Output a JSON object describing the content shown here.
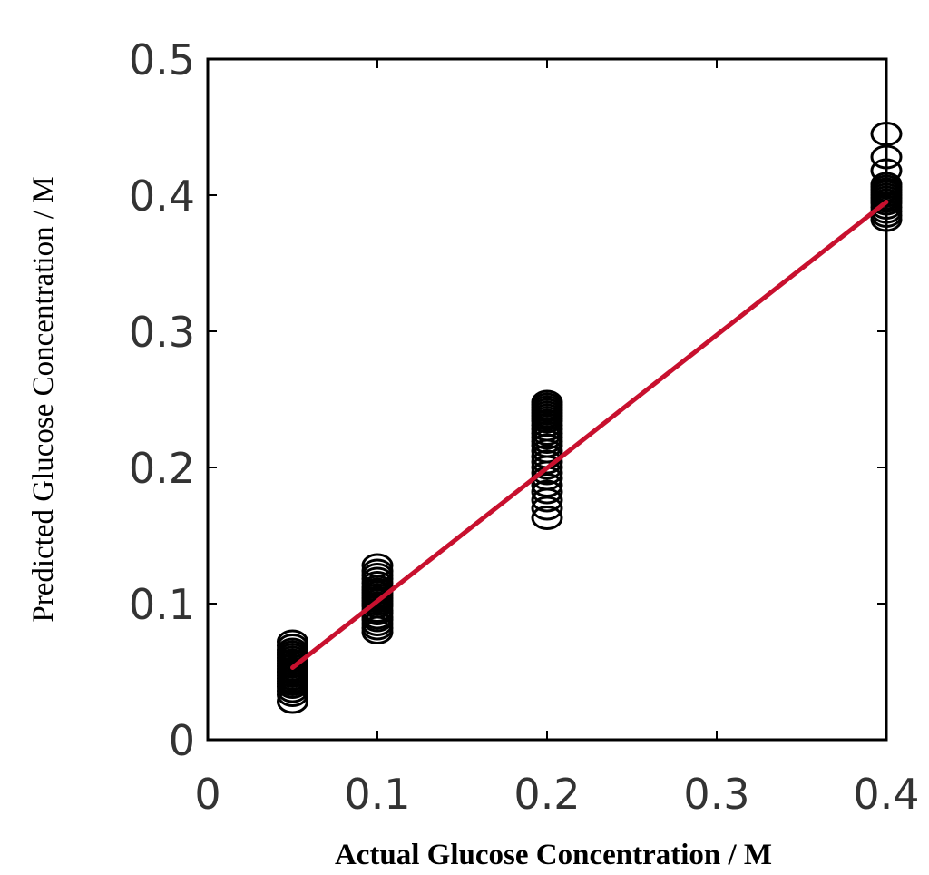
{
  "chart_data": {
    "type": "scatter",
    "title": "",
    "xlabel": "Actual Glucose Concentration / M",
    "ylabel": "Predicted Glucose Concentration / M",
    "xlim": [
      0,
      0.4
    ],
    "ylim": [
      0,
      0.5
    ],
    "xticks": [
      "0",
      "0.1",
      "0.2",
      "0.3",
      "0.4"
    ],
    "yticks": [
      "0",
      "0.1",
      "0.2",
      "0.3",
      "0.4",
      "0.5"
    ],
    "grid": false,
    "legend": "none",
    "marker": "open-circle",
    "marker_color": "#000000",
    "fit_line_color": "#c8102e",
    "series": [
      {
        "x": [
          0.05,
          0.05,
          0.05,
          0.05,
          0.05,
          0.05,
          0.05,
          0.05,
          0.05,
          0.05,
          0.05,
          0.05,
          0.05,
          0.05,
          0.05,
          0.05,
          0.05,
          0.05,
          0.05,
          0.05,
          0.1,
          0.1,
          0.1,
          0.1,
          0.1,
          0.1,
          0.1,
          0.1,
          0.1,
          0.1,
          0.1,
          0.1,
          0.1,
          0.1,
          0.1,
          0.1,
          0.1,
          0.1,
          0.1,
          0.1,
          0.2,
          0.2,
          0.2,
          0.2,
          0.2,
          0.2,
          0.2,
          0.2,
          0.2,
          0.2,
          0.2,
          0.2,
          0.2,
          0.2,
          0.2,
          0.2,
          0.2,
          0.2,
          0.2,
          0.2,
          0.2,
          0.2,
          0.2,
          0.2,
          0.2,
          0.4,
          0.4,
          0.4,
          0.4,
          0.4,
          0.4,
          0.4,
          0.4,
          0.4,
          0.4,
          0.4,
          0.4,
          0.4,
          0.4,
          0.4
        ],
        "y": [
          0.028,
          0.033,
          0.036,
          0.039,
          0.041,
          0.043,
          0.045,
          0.047,
          0.049,
          0.05,
          0.052,
          0.054,
          0.056,
          0.058,
          0.06,
          0.062,
          0.064,
          0.066,
          0.069,
          0.072,
          0.079,
          0.082,
          0.085,
          0.088,
          0.09,
          0.093,
          0.095,
          0.098,
          0.1,
          0.102,
          0.104,
          0.106,
          0.108,
          0.11,
          0.112,
          0.115,
          0.118,
          0.121,
          0.124,
          0.128,
          0.163,
          0.17,
          0.176,
          0.182,
          0.187,
          0.192,
          0.196,
          0.2,
          0.204,
          0.208,
          0.212,
          0.216,
          0.219,
          0.222,
          0.225,
          0.228,
          0.231,
          0.234,
          0.236,
          0.238,
          0.24,
          0.242,
          0.244,
          0.246,
          0.248,
          0.382,
          0.385,
          0.388,
          0.391,
          0.394,
          0.396,
          0.398,
          0.4,
          0.402,
          0.404,
          0.406,
          0.408,
          0.418,
          0.428,
          0.445
        ]
      }
    ],
    "fit_line": {
      "x": [
        0.05,
        0.4
      ],
      "y": [
        0.053,
        0.395
      ]
    }
  }
}
